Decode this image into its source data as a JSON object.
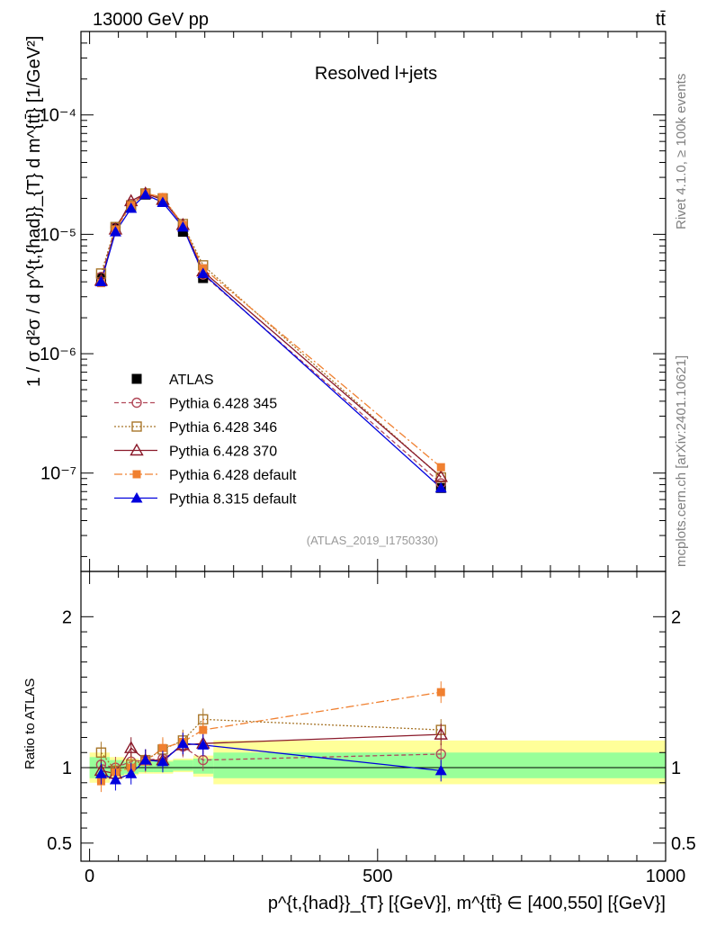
{
  "header": {
    "energy_label": "13000 GeV pp",
    "process_label": "tt̄"
  },
  "side_labels": {
    "rivet": "Rivet 4.1.0, ≥ 100k events",
    "mcplots": "mcplots.cern.ch [arXiv:2401.10621]"
  },
  "chart_data": [
    {
      "type": "scatter",
      "title": "Resolved l+jets",
      "analysis_id": "(ATLAS_2019_I1750330)",
      "ylabel_text": "1 / σ d²σ / d p^{t,{had}}_{T} d m^{tt̄} [1/GeV²]",
      "yscale": "log",
      "ylim": [
        1.5e-08,
        0.0005
      ],
      "xlim": [
        -15,
        1000
      ],
      "ytick_labels": [
        "10⁻⁷",
        "10⁻⁶",
        "10⁻⁵",
        "10⁻⁴"
      ],
      "ytick_values": [
        1e-07,
        1e-06,
        1e-05,
        0.0001
      ],
      "x": [
        20,
        45,
        72,
        97,
        127,
        162,
        197,
        610
      ],
      "series": [
        {
          "name": "ATLAS",
          "color": "#000000",
          "marker": "square",
          "values": [
            4.3e-06,
            1.15e-05,
            1.72e-05,
            2.15e-05,
            1.9e-05,
            1.05e-05,
            4.3e-06,
            7.5e-08
          ]
        },
        {
          "name": "Pythia 6.428 345",
          "color": "#b24a5a",
          "marker": "circle-open",
          "dash": "5,3",
          "values": [
            4.4e-06,
            1.15e-05,
            1.8e-05,
            2.2e-05,
            2e-05,
            1.18e-05,
            4.6e-06,
            8.2e-08
          ]
        },
        {
          "name": "Pythia 6.428 346",
          "color": "#a8762a",
          "marker": "square-open",
          "dash": "2,2",
          "values": [
            4.7e-06,
            1.15e-05,
            1.75e-05,
            2.2e-05,
            2e-05,
            1.22e-05,
            5.5e-06,
            9.2e-08
          ]
        },
        {
          "name": "Pythia 6.428 370",
          "color": "#8a1a2a",
          "marker": "triangle-open",
          "dash": "",
          "values": [
            4.1e-06,
            1.1e-05,
            1.9e-05,
            2.2e-05,
            1.95e-05,
            1.2e-05,
            4.9e-06,
            9.3e-08
          ]
        },
        {
          "name": "Pythia 6.428 default",
          "color": "#f08030",
          "marker": "square-filled",
          "dash": "9,3,2,3",
          "values": [
            3.9e-06,
            1.1e-05,
            1.75e-05,
            2.2e-05,
            2.05e-05,
            1.2e-05,
            5.2e-06,
            1.12e-07
          ]
        },
        {
          "name": "Pythia 8.315 default",
          "color": "#0000dd",
          "marker": "triangle-filled",
          "dash": "",
          "values": [
            4e-06,
            1.05e-05,
            1.65e-05,
            2.15e-05,
            1.85e-05,
            1.15e-05,
            4.7e-06,
            7.5e-08
          ]
        }
      ]
    },
    {
      "type": "scatter",
      "title": "Ratio to ATLAS",
      "ylabel": "Ratio to ATLAS",
      "ylim": [
        0.38,
        2.3
      ],
      "xlim": [
        -15,
        1000
      ],
      "xlabel": "p^{t,{had}}_{T} [{GeV}], m^{tt̄} ∈ [400,550] [{GeV}]",
      "xtick_labels": [
        "0",
        "500",
        "1000"
      ],
      "xtick_values": [
        0,
        500,
        1000
      ],
      "ytick_labels": [
        "0.5",
        "1",
        "2"
      ],
      "ytick_values": [
        0.5,
        1,
        2
      ],
      "band_bins": [
        {
          "x0": 0,
          "x1": 35,
          "inner": [
            0.93,
            1.07
          ],
          "outer": [
            0.9,
            1.1
          ]
        },
        {
          "x0": 35,
          "x1": 60,
          "inner": [
            0.95,
            1.05
          ],
          "outer": [
            0.93,
            1.07
          ]
        },
        {
          "x0": 60,
          "x1": 85,
          "inner": [
            0.96,
            1.04
          ],
          "outer": [
            0.95,
            1.06
          ]
        },
        {
          "x0": 85,
          "x1": 110,
          "inner": [
            0.97,
            1.04
          ],
          "outer": [
            0.96,
            1.05
          ]
        },
        {
          "x0": 110,
          "x1": 145,
          "inner": [
            0.97,
            1.04
          ],
          "outer": [
            0.96,
            1.05
          ]
        },
        {
          "x0": 145,
          "x1": 180,
          "inner": [
            0.98,
            1.05
          ],
          "outer": [
            0.97,
            1.06
          ]
        },
        {
          "x0": 180,
          "x1": 215,
          "inner": [
            0.96,
            1.06
          ],
          "outer": [
            0.94,
            1.08
          ]
        },
        {
          "x0": 215,
          "x1": 1000,
          "inner": [
            0.93,
            1.1
          ],
          "outer": [
            0.89,
            1.18
          ]
        }
      ],
      "x": [
        20,
        45,
        72,
        97,
        127,
        162,
        197,
        610
      ],
      "series": [
        {
          "name": "Pythia 6.428 345",
          "color": "#b24a5a",
          "marker": "circle-open",
          "dash": "5,3",
          "values": [
            1.02,
            1.0,
            1.04,
            1.05,
            1.06,
            1.14,
            1.05,
            1.09
          ]
        },
        {
          "name": "Pythia 6.428 346",
          "color": "#a8762a",
          "marker": "square-open",
          "dash": "2,2",
          "values": [
            1.1,
            0.98,
            1.02,
            1.05,
            1.12,
            1.18,
            1.32,
            1.25
          ]
        },
        {
          "name": "Pythia 6.428 370",
          "color": "#8a1a2a",
          "marker": "triangle-open",
          "dash": "",
          "values": [
            0.98,
            0.96,
            1.13,
            1.05,
            1.05,
            1.15,
            1.16,
            1.22
          ]
        },
        {
          "name": "Pythia 6.428 default",
          "color": "#f08030",
          "marker": "square-filled",
          "dash": "9,3,2,3",
          "values": [
            0.91,
            0.97,
            1.0,
            1.04,
            1.13,
            1.17,
            1.25,
            1.5
          ]
        },
        {
          "name": "Pythia 8.315 default",
          "color": "#0000dd",
          "marker": "triangle-filled",
          "dash": "",
          "values": [
            0.96,
            0.92,
            0.96,
            1.05,
            1.04,
            1.16,
            1.15,
            0.98
          ]
        }
      ]
    }
  ]
}
